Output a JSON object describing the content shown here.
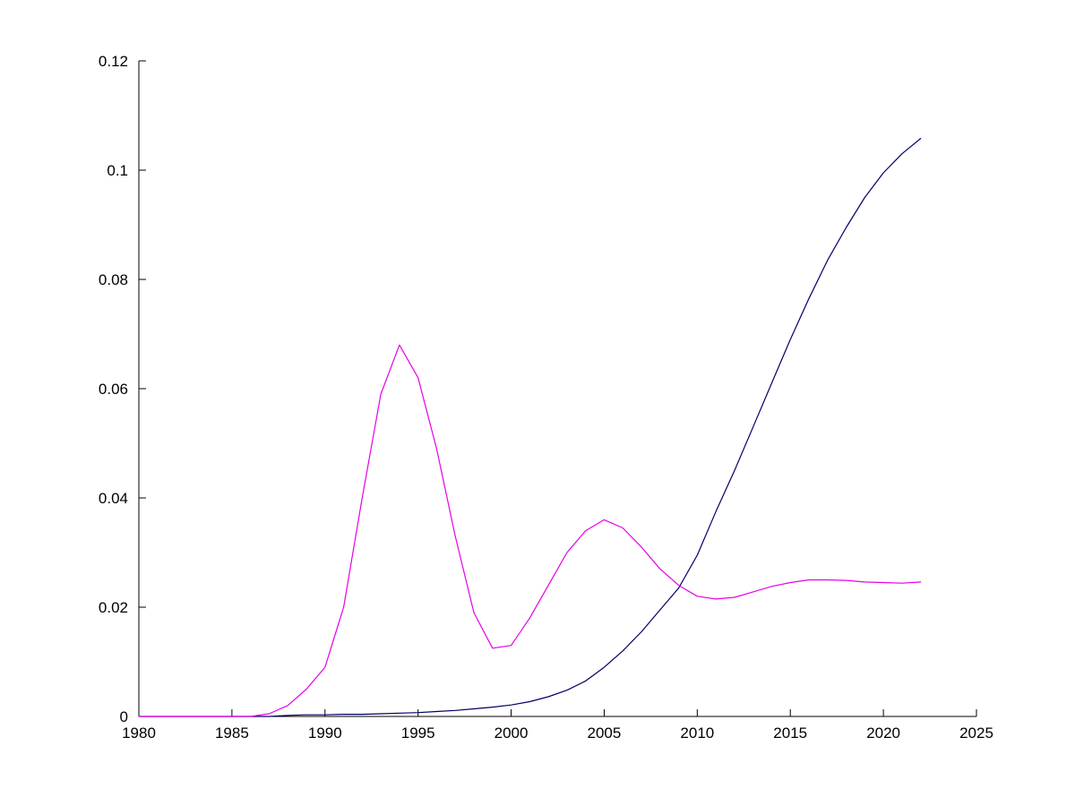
{
  "chart_data": {
    "type": "line",
    "title": "",
    "xlabel": "",
    "ylabel": "",
    "grid": false,
    "legend": null,
    "background_color": "#ffffff",
    "axis_color": "#000000",
    "xlim": [
      1980,
      2025
    ],
    "ylim": [
      0,
      0.12
    ],
    "xticks": [
      1980,
      1985,
      1990,
      1995,
      2000,
      2005,
      2010,
      2015,
      2020,
      2025
    ],
    "xtick_labels": [
      "1980",
      "1985",
      "1990",
      "1995",
      "2000",
      "2005",
      "2010",
      "2015",
      "2020",
      "2025"
    ],
    "yticks": [
      0,
      0.02,
      0.04,
      0.06,
      0.08,
      0.1,
      0.12
    ],
    "ytick_labels": [
      "0",
      "0.02",
      "0.04",
      "0.06",
      "0.08",
      "0.1",
      "0.12"
    ],
    "x": [
      1980,
      1981,
      1982,
      1983,
      1984,
      1985,
      1986,
      1987,
      1988,
      1989,
      1990,
      1991,
      1992,
      1993,
      1994,
      1995,
      1996,
      1997,
      1998,
      1999,
      2000,
      2001,
      2002,
      2003,
      2004,
      2005,
      2006,
      2007,
      2008,
      2009,
      2010,
      2011,
      2012,
      2013,
      2014,
      2015,
      2016,
      2017,
      2018,
      2019,
      2020,
      2021,
      2022
    ],
    "series": [
      {
        "name": "dark-blue",
        "color": "#000066",
        "values": [
          0,
          0,
          0,
          0,
          0,
          0,
          0,
          0,
          0.0002,
          0.0003,
          0.0003,
          0.0004,
          0.0004,
          0.0005,
          0.0006,
          0.0007,
          0.0009,
          0.0011,
          0.0014,
          0.0017,
          0.0021,
          0.0027,
          0.0036,
          0.0048,
          0.0065,
          0.009,
          0.012,
          0.0155,
          0.0195,
          0.0235,
          0.0295,
          0.0375,
          0.045,
          0.053,
          0.061,
          0.069,
          0.0765,
          0.0835,
          0.0895,
          0.095,
          0.0995,
          0.103,
          0.1058
        ]
      },
      {
        "name": "magenta",
        "color": "#e600e6",
        "values": [
          0,
          0,
          0,
          0,
          0,
          0,
          0,
          0.0005,
          0.002,
          0.005,
          0.009,
          0.02,
          0.04,
          0.059,
          0.068,
          0.062,
          0.049,
          0.033,
          0.019,
          0.0125,
          0.013,
          0.018,
          0.024,
          0.03,
          0.034,
          0.036,
          0.0345,
          0.031,
          0.027,
          0.024,
          0.022,
          0.0215,
          0.0218,
          0.0228,
          0.0238,
          0.0245,
          0.025,
          0.025,
          0.0249,
          0.0246,
          0.0245,
          0.0244,
          0.0246
        ]
      }
    ]
  }
}
